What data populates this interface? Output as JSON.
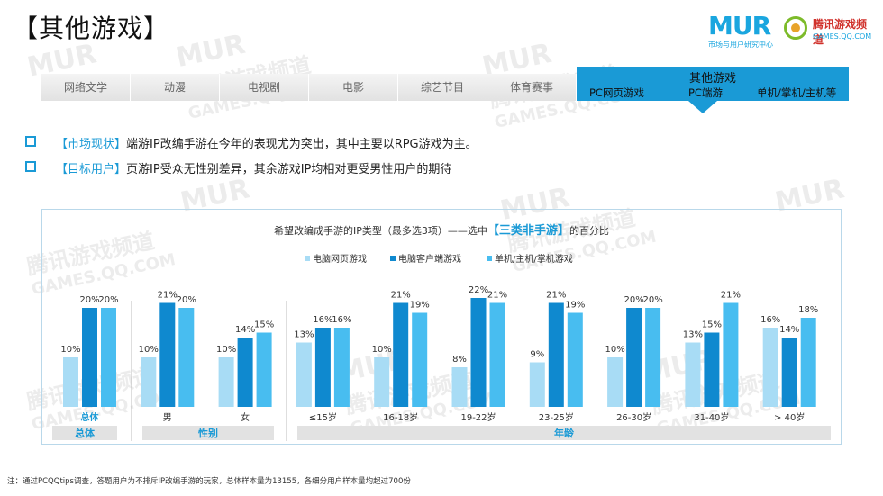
{
  "page": {
    "title": "【其他游戏】",
    "logo": {
      "mur": "MUR",
      "mur_sub": "市场与用户研究中心",
      "qq_name": "腾讯游戏频道",
      "qq_url": "GAMES.QQ.COM"
    },
    "tabs": [
      "网络文学",
      "动漫",
      "电视剧",
      "电影",
      "综艺节目",
      "体育赛事"
    ],
    "active_tab": {
      "label": "其他游戏",
      "subs": [
        "PC网页游戏",
        "PC端游",
        "单机/掌机/主机等"
      ]
    },
    "bullets": [
      {
        "tag": "【市场现状】",
        "text": "端游IP改编手游在今年的表现尤为突出，其中主要以RPG游戏为主。"
      },
      {
        "tag": "【目标用户】",
        "text": "页游IP受众无性别差异，其余游戏IP均相对更受男性用户的期待"
      }
    ],
    "chart_title": {
      "prefix": "希望改编成手游的IP类型（最多选3项）——选中",
      "highlight": "【三类非手游】",
      "suffix": "的百分比"
    },
    "footnote": "注：通过PCQQtips调查，答题用户为不排斥IP改编手游的玩家，总体样本量为13155，各细分用户样本量均超过700份",
    "watermark": {
      "line1": "MUR",
      "line2": "腾讯游戏频道",
      "line3": "GAMES.QQ.COM"
    }
  },
  "colors": {
    "accent": "#1a9ad6",
    "series": [
      "#a8dcf5",
      "#0f89cf",
      "#48bdf0"
    ],
    "group_band": "#e2e2e2"
  },
  "chart_data": {
    "type": "bar",
    "title": "希望改编成手游的IP类型（最多选3项）——选中【三类非手游】的百分比",
    "categories": [
      "总体",
      "男",
      "女",
      "≤15岁",
      "16-18岁",
      "19-22岁",
      "23-25岁",
      "26-30岁",
      "31-40岁",
      "> 40岁"
    ],
    "series": [
      {
        "name": "电脑网页游戏",
        "values": [
          10,
          10,
          10,
          13,
          10,
          8,
          9,
          10,
          13,
          16
        ]
      },
      {
        "name": "电脑客户端游戏",
        "values": [
          20,
          21,
          14,
          16,
          21,
          22,
          21,
          20,
          15,
          14
        ]
      },
      {
        "name": "单机/主机/掌机游戏",
        "values": [
          20,
          20,
          15,
          16,
          19,
          21,
          19,
          20,
          21,
          18
        ]
      }
    ],
    "value_suffix": "%",
    "groups": [
      {
        "label": "总体",
        "span": [
          0,
          0
        ]
      },
      {
        "label": "性别",
        "span": [
          1,
          2
        ]
      },
      {
        "label": "年龄",
        "span": [
          3,
          9
        ]
      }
    ],
    "ylim": [
      0,
      25
    ],
    "legend": "top-center",
    "grid": false
  }
}
